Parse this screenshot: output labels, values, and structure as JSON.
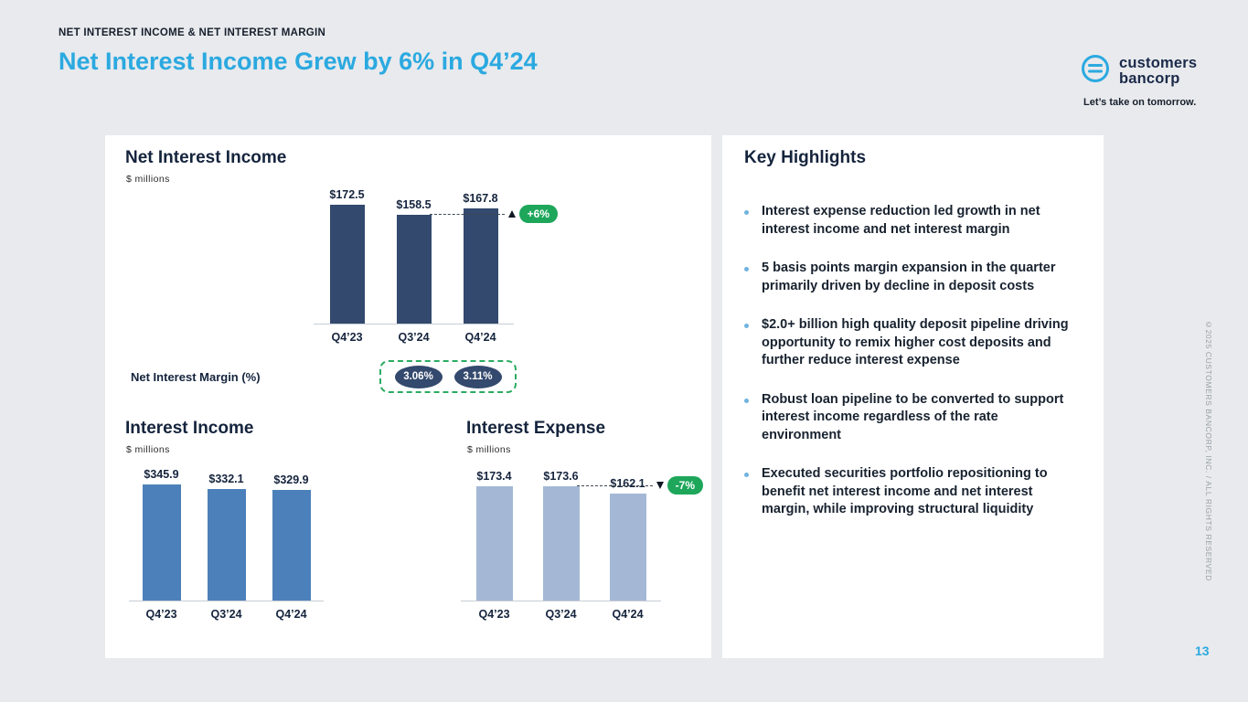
{
  "slide": {
    "kicker": "NET INTEREST INCOME & NET INTEREST MARGIN",
    "title": "Net Interest Income Grew by 6% in Q4’24",
    "page_number": "13",
    "copyright_vertical": "©2025 CUSTOMERS BANCORP, INC. / ALL RIGHTS RESERVED"
  },
  "logo": {
    "name_line1": "customers",
    "name_line2": "bancorp",
    "tagline": "Let’s take on tomorrow."
  },
  "colors": {
    "accent_blue": "#2BA9E0",
    "navy": "#15243D",
    "badge_green": "#1EA65B",
    "dashed_green": "#2BAB62",
    "nii_bar": "#33496D",
    "income_bar": "#4C80BA",
    "expense_bar": "#A4B8D6",
    "background": "#E8EAED"
  },
  "chart_data": [
    {
      "type": "bar",
      "title": "Net Interest Income",
      "units": "$ millions",
      "categories": [
        "Q4’23",
        "Q3’24",
        "Q4’24"
      ],
      "values": [
        172.5,
        158.5,
        167.8
      ],
      "labels": [
        "$172.5",
        "$158.5",
        "$167.8"
      ],
      "bar_color": "#33496D",
      "delta_badge": "+6%",
      "delta_direction": "up",
      "ylim": [
        0,
        172.5
      ],
      "grid": false,
      "legend": false
    },
    {
      "type": "bar",
      "title": "Interest Income",
      "units": "$ millions",
      "categories": [
        "Q4’23",
        "Q3’24",
        "Q4’24"
      ],
      "values": [
        345.9,
        332.1,
        329.9
      ],
      "labels": [
        "$345.9",
        "$332.1",
        "$329.9"
      ],
      "bar_color": "#4C80BA",
      "ylim": [
        0,
        345.9
      ],
      "grid": false,
      "legend": false
    },
    {
      "type": "bar",
      "title": "Interest Expense",
      "units": "$ millions",
      "categories": [
        "Q4’23",
        "Q3’24",
        "Q4’24"
      ],
      "values": [
        173.4,
        173.6,
        162.1
      ],
      "labels": [
        "$173.4",
        "$173.6",
        "$162.1"
      ],
      "bar_color": "#A4B8D6",
      "delta_badge": "-7%",
      "delta_direction": "down",
      "ylim": [
        0,
        173.6
      ],
      "grid": false,
      "legend": false
    }
  ],
  "net_interest_margin": {
    "label": "Net Interest Margin (%)",
    "values": [
      "3.06%",
      "3.11%"
    ]
  },
  "highlights": {
    "title": "Key Highlights",
    "items": [
      "Interest expense reduction led growth in net interest income and net interest margin",
      "5 basis points margin expansion in the quarter primarily driven by decline in deposit costs",
      "$2.0+ billion high quality deposit pipeline driving opportunity to remix higher cost deposits and further reduce interest expense",
      "Robust loan pipeline to be converted to support interest income regardless of the rate environment",
      "Executed securities portfolio repositioning to benefit net interest income and net interest margin, while improving structural liquidity"
    ]
  }
}
